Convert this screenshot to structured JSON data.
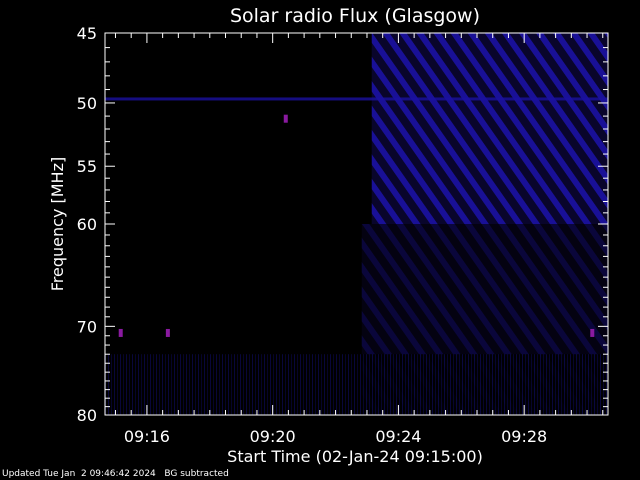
{
  "chart_data": {
    "type": "heatmap",
    "title": "Solar radio Flux (Glasgow)",
    "xlabel": "Start Time (02-Jan-24 09:15:00)",
    "ylabel": "Frequency [MHz]",
    "xlim": [
      "09:14:40",
      "09:30:40"
    ],
    "ylim": [
      45,
      80
    ],
    "y_scale": "log",
    "x_ticks": [
      "09:16",
      "09:20",
      "09:24",
      "09:28"
    ],
    "y_ticks": [
      45,
      50,
      55,
      60,
      70,
      80
    ],
    "colors": {
      "background": "#000000",
      "axes": "#ffffff",
      "emission": "#1a10a0",
      "spike": "#8a1aa0"
    },
    "features": [
      {
        "name": "broadband emission",
        "time_start": "09:22:50",
        "time_end": "09:30:40",
        "freq_start": 45,
        "freq_end": 80
      },
      {
        "name": "narrowband line",
        "time_start": "09:14:40",
        "time_end": "09:30:40",
        "freq": 49.7
      },
      {
        "name": "spike",
        "time": "09:15:10",
        "freq": 70.7
      },
      {
        "name": "spike",
        "time": "09:16:40",
        "freq": 70.7
      },
      {
        "name": "spike",
        "time": "09:30:10",
        "freq": 70.7
      },
      {
        "name": "spike",
        "time": "09:20:25",
        "freq": 51.2
      }
    ]
  },
  "footer": {
    "updated": "Updated Tue Jan  2 09:46:42 2024",
    "note": "BG subtracted"
  }
}
